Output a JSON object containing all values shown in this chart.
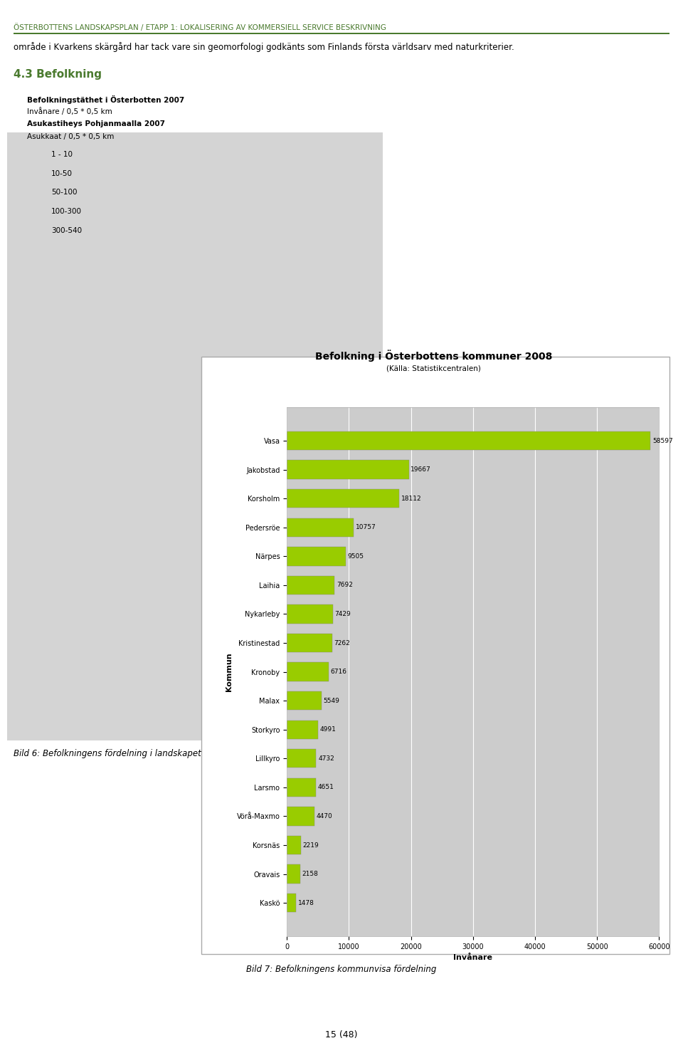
{
  "title": "Befolkning i Österbottens kommuner 2008",
  "subtitle": "(Källa: Statistikcentralen)",
  "xlabel": "Invånare",
  "ylabel": "Kommun",
  "municipalities": [
    "Vasa",
    "Jakobstad",
    "Korsholm",
    "Pedersröe",
    "Närpes",
    "Laihia",
    "Nykarleby",
    "Kristinestad",
    "Kronoby",
    "Malax",
    "Storkyro",
    "Lillkyro",
    "Larsmo",
    "Vörå-Maxmo",
    "Korsnäs",
    "Oravais",
    "Kaskö"
  ],
  "values": [
    58597,
    19667,
    18112,
    10757,
    9505,
    7692,
    7429,
    7262,
    6716,
    5549,
    4991,
    4732,
    4651,
    4470,
    2219,
    2158,
    1478
  ],
  "bar_color": "#99cc00",
  "bar_edge_color": "#888888",
  "background_color": "#cccccc",
  "plot_bg_color": "#cccccc",
  "page_bg_color": "#ffffff",
  "header_color": "#4a7a2e",
  "header_line_color": "#4a7a2e",
  "title_fontsize": 10,
  "subtitle_fontsize": 7.5,
  "label_fontsize": 7,
  "tick_fontsize": 7,
  "value_fontsize": 6.5,
  "xlabel_fontsize": 8,
  "ylabel_fontsize": 8,
  "xlim": [
    0,
    60000
  ],
  "xticks": [
    0,
    10000,
    20000,
    30000,
    40000,
    50000,
    60000
  ],
  "header_text": "ÖSTERBOTTENS LANDSKAPSPLAN / ETAPP 1: LOKALISERING AV KOMMERSIELL SERVICE BESKRIVNING",
  "body_text": "område i Kvarkens skärgård har tack vare sin geomorfologi godkänts som Finlands första världsarv med naturkriterier.",
  "section_title": "4.3 Befolkning",
  "map_title_line1": "Befolkningstäthet i Österbotten 2007",
  "map_title_line2": "Invånare / 0,5 * 0,5 km",
  "map_title_line3": "Asukastiheys Pohjanmaalla 2007",
  "map_title_line4": "Asukkaat / 0,5 * 0,5 km",
  "caption_left": "Bild 6: Befolkningens fördelning i landskapet",
  "caption_right": "Bild 7: Befolkningens kommunvisa fördelning",
  "page_number": "15 (48)"
}
